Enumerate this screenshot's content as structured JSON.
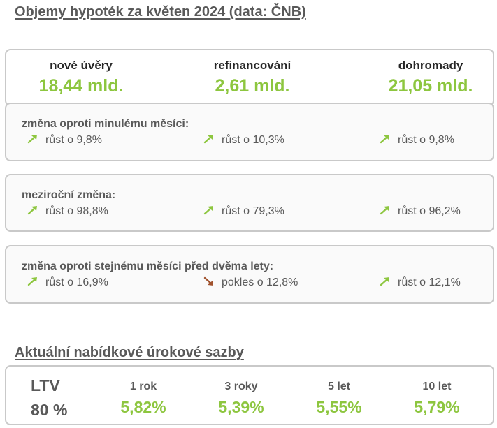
{
  "title": "Objemy hypoték za květen 2024 (data: ČNB)",
  "summary": [
    {
      "label": "nové úvěry",
      "value": "18,44 mld."
    },
    {
      "label": "refinancování",
      "value": "2,61 mld."
    },
    {
      "label": "dohromady",
      "value": "21,05 mld."
    }
  ],
  "changes": [
    {
      "label": "změna oproti minulému měsíci:",
      "items": [
        {
          "text": "růst o 9,8%",
          "direction": "up"
        },
        {
          "text": "růst o 10,3%",
          "direction": "up"
        },
        {
          "text": "růst o 9,8%",
          "direction": "up"
        }
      ]
    },
    {
      "label": "meziroční změna:",
      "items": [
        {
          "text": "růst o 98,8%",
          "direction": "up"
        },
        {
          "text": "růst o 79,3%",
          "direction": "up"
        },
        {
          "text": "růst o 96,2%",
          "direction": "up"
        }
      ]
    },
    {
      "label": "změna oproti stejnému měsíci před dvěma lety:",
      "items": [
        {
          "text": "růst o 16,9%",
          "direction": "up"
        },
        {
          "text": "pokles o 12,8%",
          "direction": "down"
        },
        {
          "text": "růst o 12,1%",
          "direction": "up"
        }
      ]
    }
  ],
  "rates_title": "Aktuální nabídkové úrokové sazby",
  "rates": {
    "ltv_label": "LTV",
    "ltv_value": "80 %",
    "terms": [
      {
        "label": "1 rok",
        "value": "5,82%"
      },
      {
        "label": "3 roky",
        "value": "5,39%"
      },
      {
        "label": "5 let",
        "value": "5,55%"
      },
      {
        "label": "10 let",
        "value": "5,79%"
      }
    ]
  },
  "colors": {
    "accent_green": "#8dc63f",
    "arrow_up": "#8dc63f",
    "arrow_down": "#a0522d",
    "text_gray": "#595959",
    "border": "#c9c9c9"
  },
  "icons": {
    "up": "arrow-up-right-icon",
    "down": "arrow-down-right-icon"
  }
}
